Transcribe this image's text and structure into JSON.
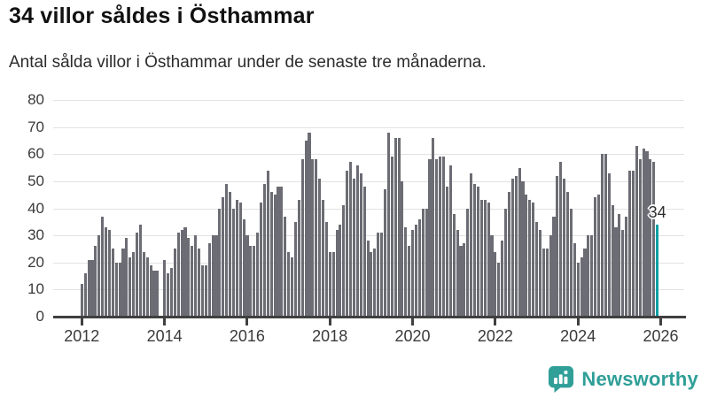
{
  "header": {
    "title": "34 villor såldes i Östhammar",
    "subtitle": "Antal sålda villor i Östhammar under de senaste tre månaderna."
  },
  "colors": {
    "bar": "#6c6c74",
    "highlight": "#00a1a4",
    "grid": "#e2e2e2",
    "axis": "#404040",
    "label_text": "#3a3a3a",
    "brand_teal": "#2f9f98"
  },
  "chart_data": {
    "type": "bar",
    "title": "34 villor såldes i Östhammar",
    "subtitle": "Antal sålda villor i Östhammar under de senaste tre månaderna.",
    "x_monthly_from_year": 2012,
    "x_tick_labels": [
      "2012",
      "2014",
      "2016",
      "2018",
      "2020",
      "2022",
      "2024",
      "2026"
    ],
    "y_ticks": [
      0,
      10,
      20,
      30,
      40,
      50,
      60,
      70,
      80
    ],
    "ylim": [
      0,
      80
    ],
    "grid": true,
    "legend": false,
    "values": [
      12,
      16,
      21,
      21,
      26,
      30,
      37,
      33,
      32,
      25,
      20,
      20,
      25,
      29,
      22,
      24,
      31,
      34,
      24,
      22,
      19,
      17,
      17,
      0,
      21,
      16,
      18,
      25,
      31,
      32,
      33,
      29,
      26,
      30,
      25,
      19,
      19,
      27,
      30,
      30,
      40,
      44,
      49,
      46,
      40,
      43,
      42,
      36,
      30,
      26,
      26,
      31,
      42,
      49,
      54,
      46,
      45,
      48,
      48,
      37,
      24,
      22,
      35,
      43,
      58,
      65,
      68,
      58,
      58,
      51,
      43,
      35,
      24,
      24,
      32,
      34,
      41,
      54,
      57,
      51,
      56,
      53,
      48,
      28,
      24,
      25,
      31,
      31,
      47,
      68,
      59,
      66,
      66,
      50,
      33,
      26,
      32,
      34,
      36,
      40,
      40,
      58,
      66,
      58,
      59,
      59,
      48,
      56,
      38,
      32,
      26,
      27,
      40,
      53,
      49,
      48,
      43,
      43,
      42,
      30,
      24,
      20,
      28,
      40,
      46,
      51,
      52,
      55,
      50,
      45,
      43,
      42,
      35,
      32,
      25,
      25,
      30,
      37,
      52,
      57,
      51,
      46,
      40,
      27,
      20,
      22,
      25,
      30,
      30,
      44,
      45,
      60,
      60,
      53,
      41,
      33,
      38,
      32,
      37,
      54,
      54,
      63,
      58,
      62,
      61,
      58,
      57,
      34
    ],
    "highlighted_last_value": 34,
    "annotation_label": "34"
  },
  "footer": {
    "brand_text": "Newsworthy",
    "brand_icon": "bar-chart-speech-bubble-icon"
  }
}
